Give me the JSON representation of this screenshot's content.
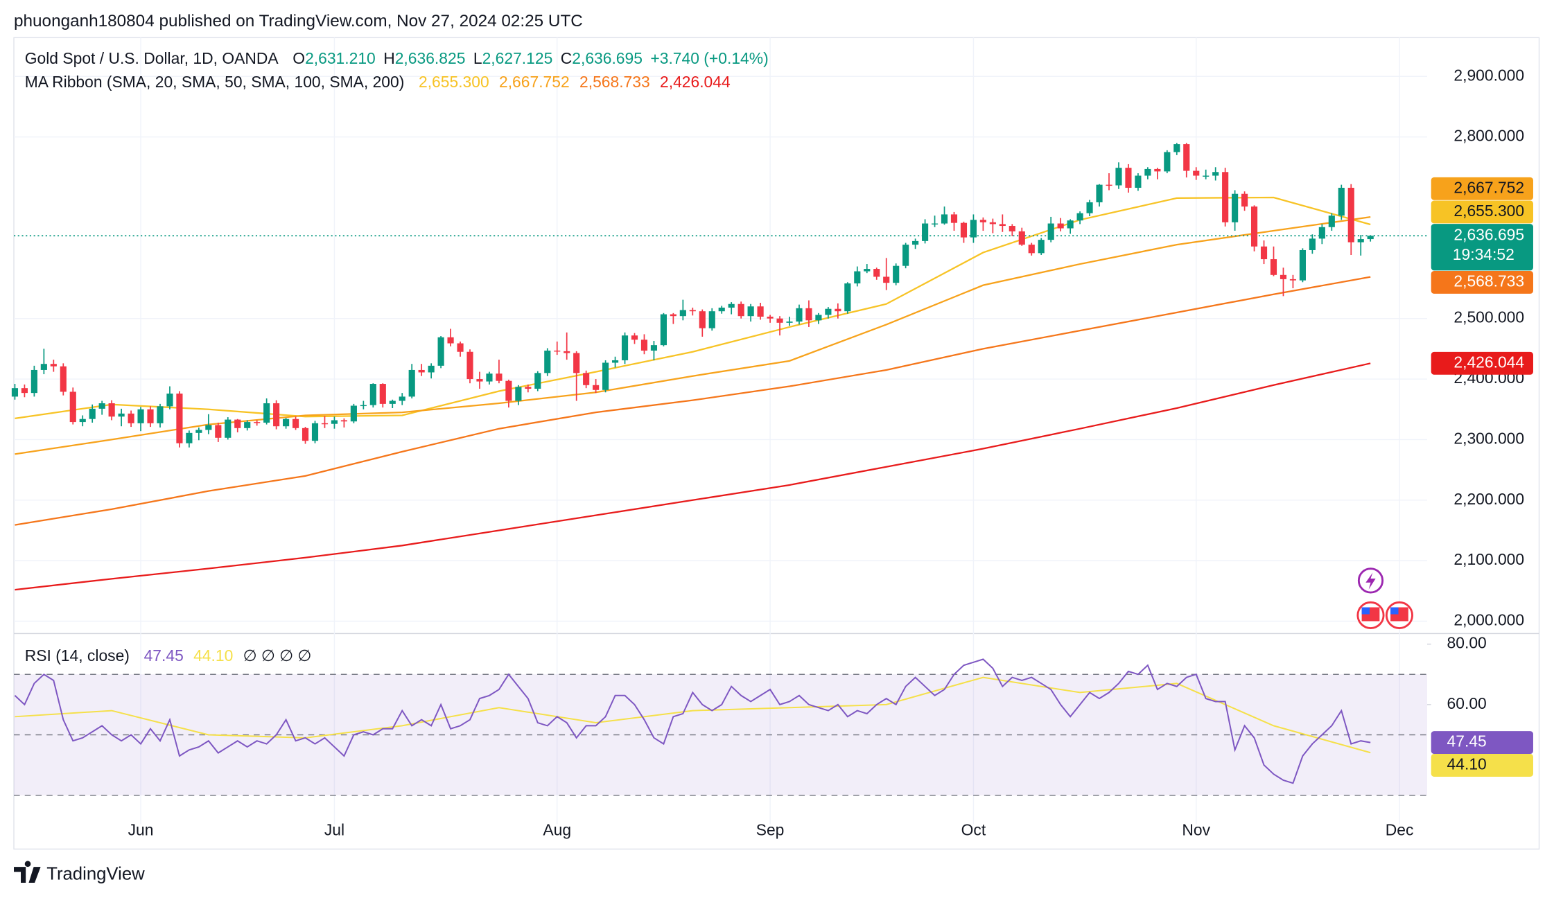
{
  "header": {
    "text": "phuonganh180804 published on TradingView.com, Nov 27, 2024 02:25 UTC"
  },
  "footer": {
    "brand": "TradingView"
  },
  "chart_data": {
    "type": "candlestick",
    "title": "Gold Spot / U.S. Dollar, 1D, OANDA",
    "readout": [
      {
        "key": "O",
        "text": "2,631.210"
      },
      {
        "key": "H",
        "text": "2,636.825"
      },
      {
        "key": "L",
        "text": "2,627.125"
      },
      {
        "key": "C",
        "text": "2,636.695"
      }
    ],
    "change": "+3.740 (+0.14%)",
    "countdown": "19:34:52",
    "up_color": "#089981",
    "down_color": "#f23645",
    "categories": [
      null,
      null,
      null,
      null,
      null,
      null,
      null,
      null,
      null,
      null,
      null,
      null,
      null,
      "Jun",
      null,
      null,
      null,
      null,
      null,
      null,
      null,
      null,
      null,
      null,
      null,
      null,
      null,
      null,
      null,
      null,
      null,
      null,
      null,
      "Jul",
      null,
      null,
      null,
      null,
      null,
      null,
      null,
      null,
      null,
      null,
      null,
      null,
      null,
      null,
      null,
      null,
      null,
      null,
      null,
      null,
      null,
      null,
      "Aug",
      null,
      null,
      null,
      null,
      null,
      null,
      null,
      null,
      null,
      null,
      null,
      null,
      null,
      null,
      null,
      null,
      null,
      null,
      null,
      null,
      null,
      "Sep",
      null,
      null,
      null,
      null,
      null,
      null,
      null,
      null,
      null,
      null,
      null,
      null,
      null,
      null,
      null,
      null,
      null,
      null,
      null,
      null,
      "Oct",
      null,
      null,
      null,
      null,
      null,
      null,
      null,
      null,
      null,
      null,
      null,
      null,
      null,
      null,
      null,
      null,
      null,
      null,
      null,
      null,
      null,
      null,
      "Nov",
      null,
      null,
      null,
      null,
      null,
      null,
      null,
      null,
      null,
      null,
      null,
      null,
      null,
      null,
      null,
      null,
      null,
      null,
      null,
      null,
      "Dec"
    ],
    "open": [
      2371,
      2385,
      2377,
      2415,
      2425,
      2421,
      2379,
      2329,
      2334,
      2351,
      2360,
      2338,
      2343,
      2327,
      2350,
      2327,
      2355,
      2376,
      2294,
      2311,
      2316,
      2324,
      2303,
      2333,
      2319,
      2329,
      2328,
      2360,
      2322,
      2334,
      2319,
      2298,
      2327,
      2326,
      2332,
      2330,
      2356,
      2357,
      2392,
      2359,
      2364,
      2371,
      2415,
      2411,
      2422,
      2469,
      2459,
      2445,
      2400,
      2396,
      2409,
      2397,
      2364,
      2387,
      2384,
      2410,
      2447,
      2446,
      2443,
      2410,
      2390,
      2382,
      2427,
      2431,
      2472,
      2465,
      2447,
      2456,
      2507,
      2504,
      2514,
      2512,
      2484,
      2512,
      2518,
      2524,
      2504,
      2520,
      2503,
      2500,
      2493,
      2495,
      2517,
      2497,
      2506,
      2516,
      2512,
      2558,
      2578,
      2582,
      2569,
      2559,
      2587,
      2622,
      2628,
      2657,
      2657,
      2672,
      2658,
      2634,
      2663,
      2659,
      2656,
      2653,
      2644,
      2622,
      2608,
      2630,
      2657,
      2649,
      2662,
      2674,
      2692,
      2721,
      2720,
      2749,
      2716,
      2736,
      2747,
      2743,
      2775,
      2788,
      2744,
      2736,
      2736,
      2742,
      2659,
      2706,
      2685,
      2619,
      2598,
      2572,
      2565,
      2563,
      2613,
      2632,
      2651,
      2670,
      2716,
      2626,
      2631.21,
      null,
      null,
      null
    ],
    "high": [
      2392,
      2391,
      2422,
      2450,
      2432,
      2426,
      2386,
      2340,
      2358,
      2364,
      2365,
      2351,
      2348,
      2354,
      2355,
      2359,
      2388,
      2380,
      2315,
      2320,
      2342,
      2328,
      2337,
      2334,
      2332,
      2332,
      2368,
      2365,
      2336,
      2338,
      2321,
      2331,
      2339,
      2338,
      2335,
      2359,
      2364,
      2393,
      2393,
      2366,
      2377,
      2425,
      2425,
      2426,
      2471,
      2483,
      2462,
      2449,
      2412,
      2412,
      2432,
      2399,
      2390,
      2391,
      2413,
      2451,
      2462,
      2477,
      2446,
      2414,
      2400,
      2431,
      2437,
      2477,
      2476,
      2474,
      2463,
      2509,
      2509,
      2531,
      2518,
      2515,
      2517,
      2521,
      2527,
      2528,
      2524,
      2526,
      2506,
      2504,
      2503,
      2523,
      2530,
      2509,
      2519,
      2525,
      2560,
      2586,
      2590,
      2584,
      2600,
      2591,
      2625,
      2632,
      2664,
      2670,
      2685,
      2676,
      2660,
      2672,
      2667,
      2665,
      2672,
      2656,
      2650,
      2625,
      2633,
      2668,
      2666,
      2664,
      2677,
      2696,
      2722,
      2740,
      2758,
      2755,
      2740,
      2750,
      2749,
      2778,
      2790,
      2790,
      2750,
      2746,
      2750,
      2749,
      2712,
      2710,
      2687,
      2629,
      2619,
      2584,
      2572,
      2616,
      2639,
      2656,
      2674,
      2721,
      2722,
      2638,
      2636.825,
      null,
      null,
      null
    ],
    "low": [
      2366,
      2370,
      2371,
      2408,
      2412,
      2373,
      2325,
      2322,
      2328,
      2341,
      2332,
      2322,
      2321,
      2314,
      2321,
      2320,
      2350,
      2287,
      2287,
      2299,
      2309,
      2296,
      2300,
      2312,
      2315,
      2323,
      2325,
      2317,
      2318,
      2316,
      2293,
      2294,
      2319,
      2318,
      2320,
      2327,
      2350,
      2353,
      2353,
      2352,
      2357,
      2368,
      2405,
      2401,
      2418,
      2454,
      2437,
      2393,
      2384,
      2391,
      2393,
      2353,
      2357,
      2378,
      2380,
      2405,
      2440,
      2432,
      2364,
      2385,
      2377,
      2378,
      2419,
      2425,
      2458,
      2441,
      2431,
      2454,
      2491,
      2497,
      2505,
      2470,
      2480,
      2508,
      2507,
      2500,
      2495,
      2498,
      2493,
      2472,
      2488,
      2490,
      2486,
      2491,
      2500,
      2500,
      2508,
      2553,
      2575,
      2564,
      2547,
      2555,
      2583,
      2615,
      2624,
      2651,
      2655,
      2645,
      2625,
      2625,
      2645,
      2641,
      2643,
      2636,
      2620,
      2604,
      2605,
      2626,
      2644,
      2640,
      2656,
      2669,
      2685,
      2712,
      2714,
      2708,
      2711,
      2730,
      2730,
      2740,
      2770,
      2733,
      2729,
      2730,
      2728,
      2652,
      2645,
      2678,
      2611,
      2590,
      2570,
      2537,
      2550,
      2560,
      2607,
      2623,
      2645,
      2663,
      2605,
      2604,
      2627.125,
      null,
      null,
      null
    ],
    "close": [
      2385,
      2377,
      2415,
      2425,
      2421,
      2379,
      2329,
      2334,
      2351,
      2360,
      2338,
      2343,
      2327,
      2350,
      2327,
      2355,
      2376,
      2294,
      2311,
      2316,
      2324,
      2303,
      2333,
      2319,
      2329,
      2328,
      2360,
      2322,
      2334,
      2319,
      2298,
      2327,
      2326,
      2332,
      2330,
      2356,
      2357,
      2392,
      2359,
      2364,
      2371,
      2415,
      2411,
      2422,
      2469,
      2459,
      2445,
      2400,
      2396,
      2409,
      2397,
      2364,
      2387,
      2384,
      2410,
      2447,
      2446,
      2443,
      2410,
      2390,
      2382,
      2427,
      2431,
      2472,
      2465,
      2447,
      2456,
      2507,
      2504,
      2514,
      2512,
      2484,
      2512,
      2518,
      2524,
      2504,
      2520,
      2503,
      2500,
      2493,
      2495,
      2517,
      2497,
      2506,
      2516,
      2512,
      2558,
      2578,
      2582,
      2569,
      2559,
      2587,
      2622,
      2628,
      2657,
      2657,
      2672,
      2658,
      2634,
      2663,
      2659,
      2656,
      2653,
      2644,
      2622,
      2608,
      2630,
      2657,
      2649,
      2662,
      2674,
      2692,
      2721,
      2720,
      2749,
      2716,
      2736,
      2747,
      2743,
      2775,
      2788,
      2744,
      2736,
      2736,
      2742,
      2659,
      2706,
      2685,
      2619,
      2598,
      2572,
      2565,
      2563,
      2613,
      2632,
      2651,
      2670,
      2716,
      2626,
      2631.21,
      2636.695,
      null,
      null,
      null
    ],
    "ylim": [
      1982,
      2964
    ],
    "yticks": [
      {
        "value": 2000,
        "label": "2,000.000"
      },
      {
        "value": 2100,
        "label": "2,100.000"
      },
      {
        "value": 2200,
        "label": "2,200.000"
      },
      {
        "value": 2300,
        "label": "2,300.000"
      },
      {
        "value": 2400,
        "label": "2,400.000"
      },
      {
        "value": 2500,
        "label": "2,500.000"
      },
      {
        "value": 2800,
        "label": "2,800.000"
      },
      {
        "value": 2900,
        "label": "2,900.000"
      }
    ],
    "grid": true,
    "last_price_color": "#089981",
    "ribbon": {
      "name": "MA Ribbon (SMA, 20, SMA, 50, SMA, 100, SMA, 200)",
      "x": [
        0,
        10,
        20,
        30,
        40,
        50,
        60,
        70,
        80,
        90,
        100,
        110,
        120,
        130,
        140
      ],
      "series": [
        {
          "color": "#f7c325",
          "label_text_color": "#131722",
          "values": [
            2335,
            2358,
            2350,
            2338,
            2340,
            2380,
            2412,
            2445,
            2486,
            2524,
            2609,
            2663,
            2699,
            2700,
            2655.3
          ],
          "value_label": "2,655.300"
        },
        {
          "color": "#f7a21b",
          "label_text_color": "#131722",
          "values": [
            2276,
            2300,
            2325,
            2340,
            2345,
            2360,
            2378,
            2405,
            2430,
            2490,
            2555,
            2590,
            2622,
            2645,
            2667.752
          ],
          "value_label": "2,667.752"
        },
        {
          "color": "#f5761a",
          "label_text_color": "#ffffff",
          "values": [
            2159,
            2185,
            2215,
            2240,
            2280,
            2318,
            2345,
            2365,
            2388,
            2415,
            2450,
            2480,
            2510,
            2540,
            2568.733
          ],
          "value_label": "2,568.733"
        },
        {
          "color": "#e81b1b",
          "label_text_color": "#ffffff",
          "values": [
            2052,
            2070,
            2087,
            2105,
            2125,
            2150,
            2175,
            2200,
            2225,
            2255,
            2285,
            2318,
            2352,
            2390,
            2426.044
          ],
          "value_label": "2,426.044"
        }
      ]
    },
    "rsi": {
      "name": "RSI (14, close)",
      "color": "#7e57c2",
      "values": [
        63,
        60,
        67,
        70,
        68,
        55,
        48,
        49,
        51,
        53,
        50,
        48,
        50,
        47,
        52,
        48,
        55,
        43,
        45,
        46,
        48,
        44,
        46,
        48,
        46,
        48,
        47,
        50,
        55,
        48,
        49,
        47,
        49,
        46,
        43,
        50,
        51,
        50,
        52,
        52,
        58,
        53,
        55,
        53,
        60,
        52,
        53,
        55,
        62,
        63,
        65,
        70,
        66,
        62,
        54,
        53,
        56,
        54,
        49,
        53,
        53,
        56,
        63,
        63,
        60,
        55,
        49,
        47,
        56,
        57,
        64,
        60,
        58,
        60,
        66,
        63,
        61,
        63,
        65,
        60,
        61,
        63,
        60,
        59,
        58,
        60,
        56,
        58,
        57,
        60,
        62,
        60,
        66,
        69,
        66,
        63,
        65,
        70,
        73,
        74,
        75,
        72,
        66,
        69,
        68,
        69,
        67,
        65,
        60,
        56,
        60,
        64,
        62,
        64,
        67,
        71,
        70,
        73,
        65,
        67,
        66,
        69,
        70,
        62,
        61,
        61,
        45,
        53,
        49,
        40,
        37,
        35,
        34,
        43,
        47,
        50,
        53,
        58,
        47,
        48,
        47.45,
        null,
        null,
        null
      ],
      "value_label": "47.45",
      "ma": {
        "color": "#f5e04a",
        "x": [
          0,
          10,
          20,
          30,
          40,
          50,
          60,
          70,
          80,
          90,
          100,
          110,
          120,
          130,
          140
        ],
        "values": [
          56,
          58,
          50,
          49,
          53,
          59,
          54,
          58,
          59,
          60,
          69,
          64,
          67,
          53,
          44.1
        ],
        "value_label": "44.10"
      },
      "placeholders": "∅ ∅ ∅ ∅",
      "ylim": [
        20.4,
        83
      ],
      "yticks": [
        {
          "value": 60,
          "label": "60.00"
        },
        {
          "value": 80,
          "label": "80.00"
        }
      ],
      "levels": [
        70,
        50,
        30
      ]
    }
  }
}
